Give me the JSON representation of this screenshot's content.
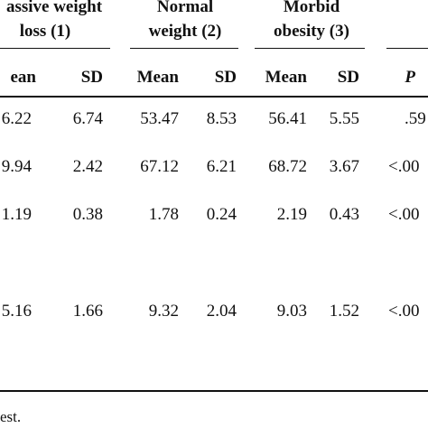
{
  "table": {
    "group_headers": [
      {
        "line1": "assive weight",
        "line2": "loss (1)"
      },
      {
        "line1": "Normal",
        "line2": "weight (2)"
      },
      {
        "line1": "Morbid",
        "line2": "obesity (3)"
      }
    ],
    "sub_headers": [
      "ean",
      "SD",
      "Mean",
      "SD",
      "Mean",
      "SD",
      "P"
    ],
    "rows": [
      [
        "6.22",
        "6.74",
        "53.47",
        "8.53",
        "56.41",
        "5.55",
        ".59"
      ],
      [
        "9.94",
        "2.42",
        "67.12",
        "6.21",
        "68.72",
        "3.67",
        "<.00"
      ],
      [
        "1.19",
        "0.38",
        "1.78",
        "0.24",
        "2.19",
        "0.43",
        "<.00"
      ],
      [
        "5.16",
        "1.66",
        "9.32",
        "2.04",
        "9.03",
        "1.52",
        "<.00"
      ]
    ]
  },
  "footnote": "est."
}
